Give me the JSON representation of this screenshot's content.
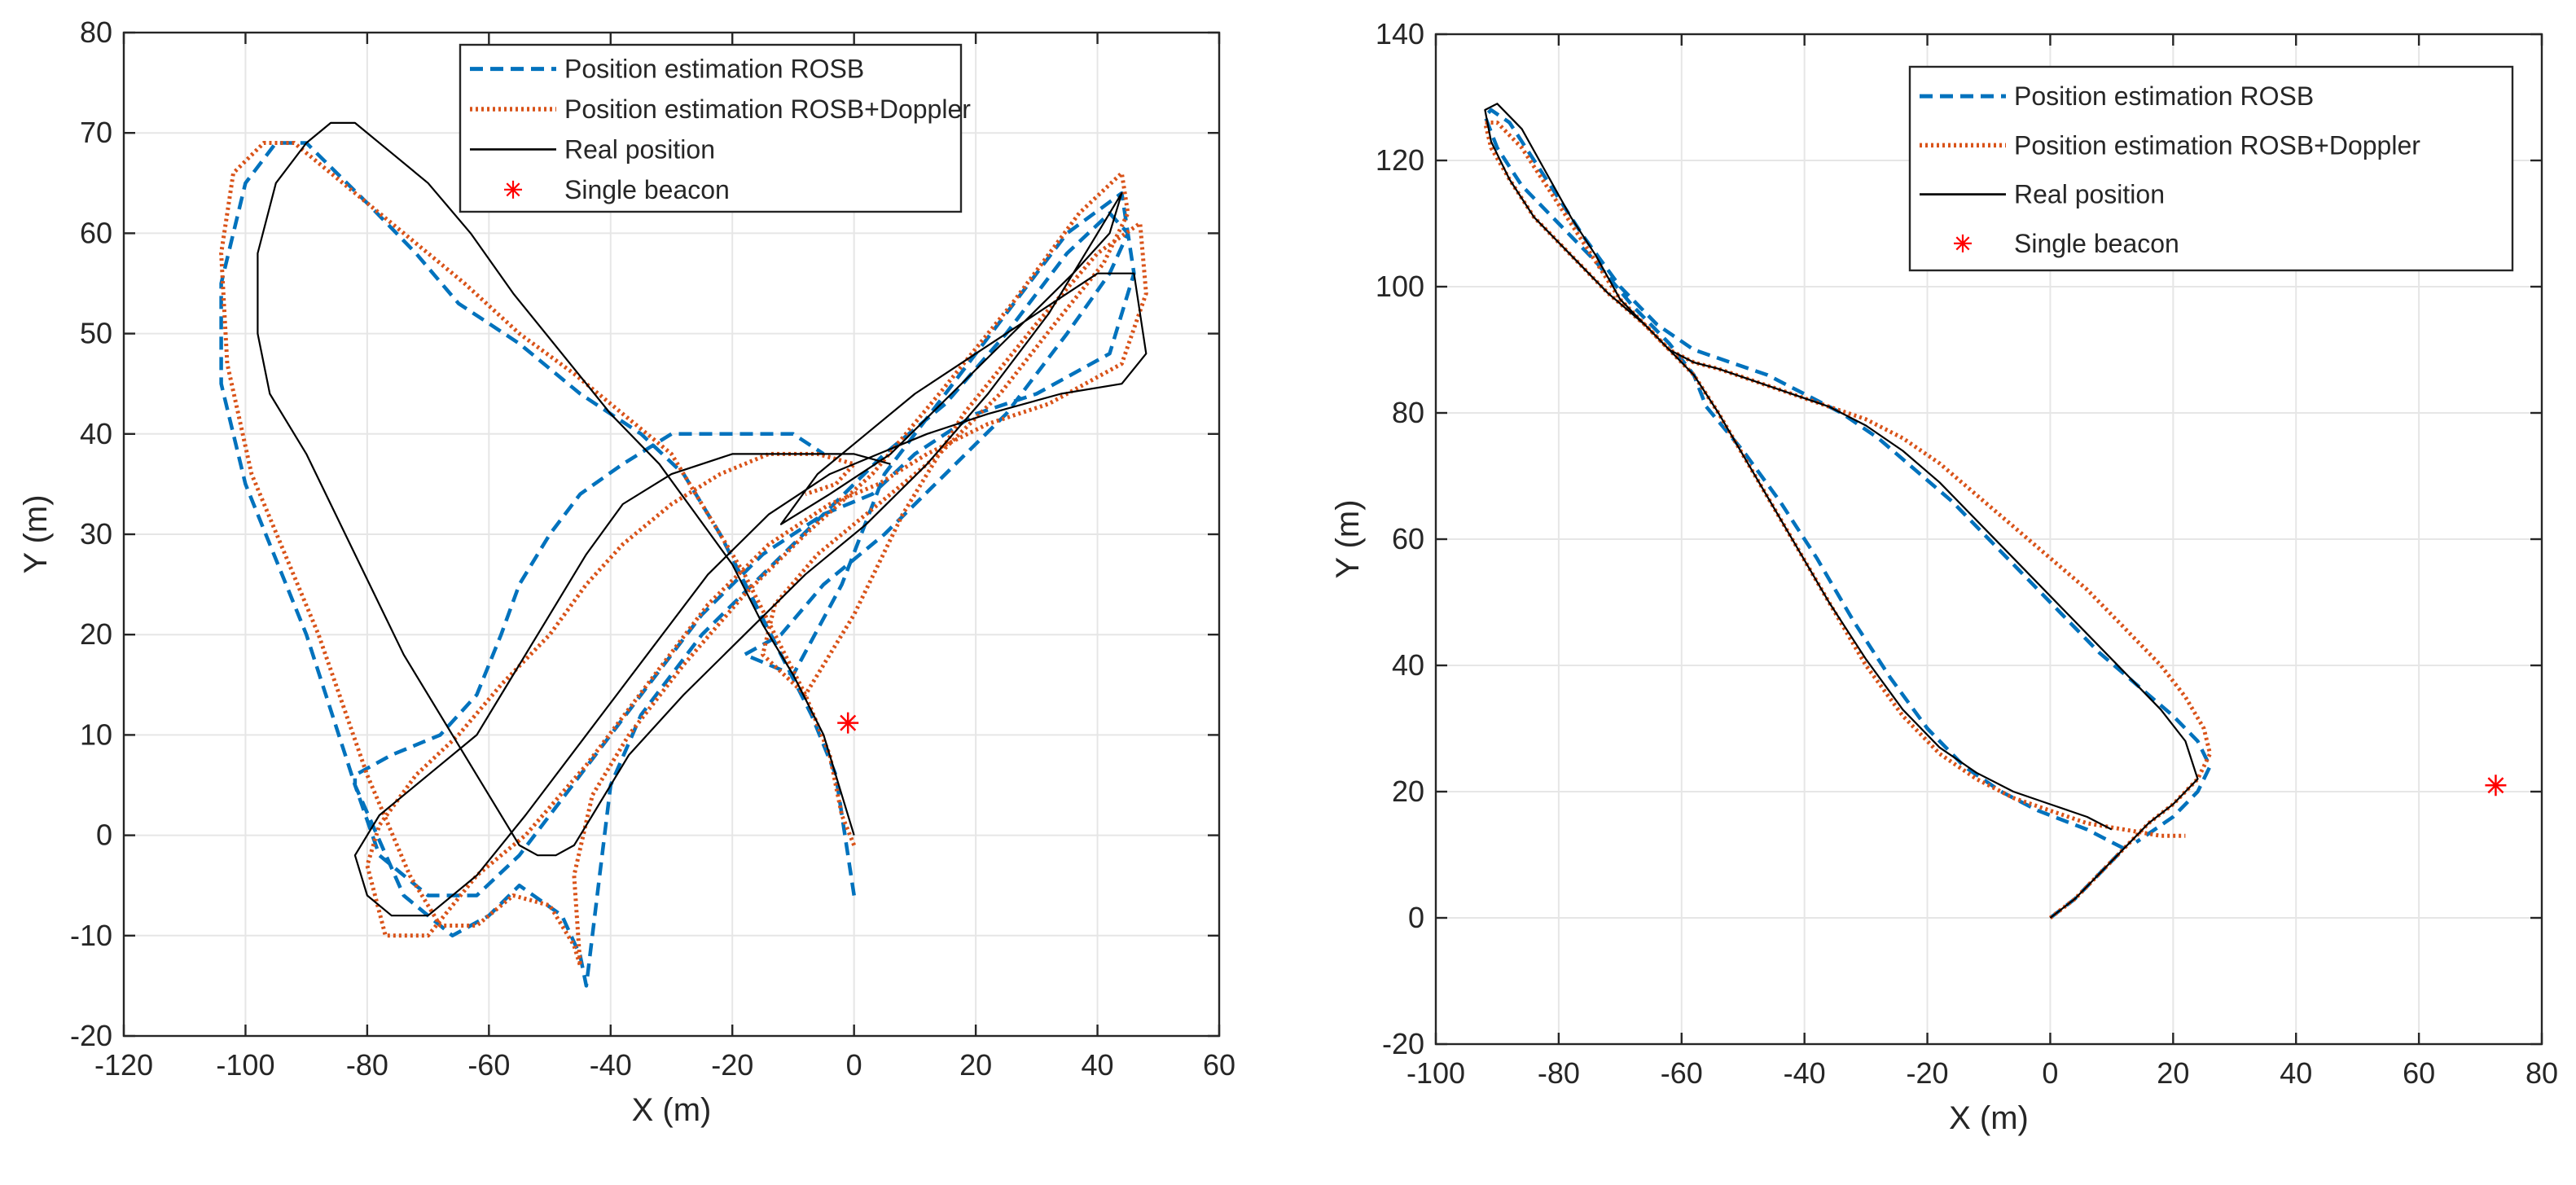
{
  "colors": {
    "rosb": "#0072bd",
    "doppler": "#d95319",
    "real": "#000000",
    "beacon": "#ff0000",
    "grid": "#e6e6e6",
    "axis": "#262626"
  },
  "chart_data": [
    {
      "type": "line",
      "xlabel": "X (m)",
      "ylabel": "Y (m)",
      "xlim": [
        -120,
        60
      ],
      "ylim": [
        -20,
        80
      ],
      "xticks": [
        "-120",
        "-100",
        "-80",
        "-60",
        "-40",
        "-20",
        "0",
        "20",
        "40",
        "60"
      ],
      "yticks": [
        "-20",
        "-10",
        "0",
        "10",
        "20",
        "30",
        "40",
        "50",
        "60",
        "70",
        "80"
      ],
      "grid": true,
      "legend_position": "top-center",
      "legend": [
        "Position estimation ROSB",
        "Position estimation ROSB+Doppler",
        "Real position",
        "Single beacon"
      ],
      "series": [
        {
          "name": "Position estimation ROSB",
          "style": "dashed",
          "color": "#0072bd",
          "x": [
            0,
            -1,
            -3,
            -7,
            -12,
            -17,
            -22,
            -28,
            -35,
            -45,
            -55,
            -65,
            -72,
            -80,
            -85,
            -90,
            -95,
            -100,
            -104,
            -104,
            -100,
            -90,
            -82,
            -74,
            -66,
            -60,
            -55,
            -48,
            -45,
            -44,
            -42,
            -40,
            -35,
            -25,
            -15,
            -5,
            5,
            15,
            25,
            35,
            42,
            45,
            42,
            35,
            25,
            15,
            5,
            -5,
            -12,
            -18,
            -10,
            -2,
            5,
            15,
            25,
            35,
            44,
            46,
            42,
            30,
            20,
            10,
            3,
            -5,
            -15,
            -25,
            -35,
            -45,
            -55,
            -62,
            -70,
            -78,
            -82,
            -82,
            -76,
            -68,
            -62,
            -58,
            -55,
            -50,
            -45,
            -38,
            -30,
            -20,
            -10,
            -5
          ],
          "y": [
            -6,
            -2,
            6,
            12,
            18,
            24,
            30,
            36,
            40,
            44,
            49,
            53,
            58,
            63,
            66,
            69,
            69,
            65,
            55,
            45,
            35,
            20,
            5,
            -6,
            -10,
            -8,
            -5,
            -8,
            -12,
            -15,
            -5,
            5,
            12,
            20,
            26,
            32,
            38,
            43,
            50,
            58,
            62,
            60,
            56,
            50,
            42,
            36,
            30,
            25,
            20,
            18,
            16,
            25,
            36,
            44,
            52,
            60,
            64,
            56,
            48,
            44,
            42,
            38,
            34,
            32,
            28,
            22,
            14,
            6,
            -2,
            -6,
            -6,
            -2,
            5,
            6,
            8,
            10,
            14,
            20,
            25,
            30,
            34,
            37,
            40,
            40,
            40,
            38
          ]
        },
        {
          "name": "Position estimation ROSB+Doppler",
          "style": "dotted",
          "color": "#d95319",
          "x": [
            0,
            -2,
            -4,
            -8,
            -13,
            -18,
            -24,
            -30,
            -38,
            -46,
            -55,
            -64,
            -72,
            -80,
            -86,
            -92,
            -97,
            -102,
            -104,
            -103,
            -99,
            -88,
            -80,
            -73,
            -68,
            -62,
            -56,
            -50,
            -46,
            -45,
            -46,
            -43,
            -37,
            -28,
            -18,
            -8,
            3,
            14,
            26,
            37,
            44,
            45,
            41,
            33,
            24,
            14,
            4,
            -6,
            -13,
            -15,
            -8,
            0,
            8,
            18,
            30,
            40,
            47,
            48,
            44,
            32,
            22,
            12,
            4,
            -4,
            -14,
            -24,
            -34,
            -44,
            -54,
            -62,
            -70,
            -77,
            -80,
            -78,
            -72,
            -65,
            -58,
            -50,
            -44,
            -38,
            -30,
            -22,
            -14,
            -6,
            0,
            -3,
            -8
          ],
          "y": [
            -1,
            2,
            8,
            14,
            20,
            26,
            32,
            38,
            42,
            46,
            50,
            55,
            59,
            63,
            66,
            69,
            69,
            66,
            58,
            47,
            36,
            20,
            6,
            -4,
            -9,
            -9,
            -6,
            -7,
            -11,
            -13,
            -4,
            4,
            10,
            17,
            24,
            30,
            36,
            44,
            53,
            62,
            66,
            62,
            57,
            51,
            44,
            38,
            33,
            28,
            23,
            18,
            14,
            22,
            32,
            42,
            51,
            58,
            61,
            54,
            47,
            43,
            41,
            38,
            35,
            33,
            29,
            23,
            15,
            7,
            0,
            -4,
            -10,
            -10,
            -3,
            1,
            6,
            10,
            15,
            20,
            25,
            29,
            33,
            36,
            38,
            38,
            37,
            35,
            34
          ]
        },
        {
          "name": "Real position",
          "style": "solid",
          "color": "#000000",
          "x": [
            0,
            -2,
            -5,
            -10,
            -15,
            -20,
            -26,
            -32,
            -40,
            -48,
            -56,
            -63,
            -70,
            -76,
            -82,
            -86,
            -90,
            -95,
            -98,
            -98,
            -96,
            -90,
            -82,
            -74,
            -66,
            -60,
            -55,
            -52,
            -49,
            -46,
            -43,
            -37,
            -28,
            -18,
            -8,
            2,
            12,
            22,
            32,
            40,
            44,
            42,
            36,
            26,
            16,
            6,
            -4,
            -12,
            -6,
            2,
            10,
            20,
            30,
            40,
            46,
            48,
            44,
            34,
            22,
            12,
            4,
            -4,
            -14,
            -24,
            -34,
            -44,
            -54,
            -62,
            -70,
            -76,
            -80,
            -82,
            -78,
            -70,
            -62,
            -56,
            -50,
            -44,
            -38,
            -30,
            -20,
            -10,
            0,
            6
          ],
          "y": [
            0,
            4,
            10,
            16,
            21,
            27,
            32,
            37,
            42,
            48,
            54,
            60,
            65,
            68,
            71,
            71,
            69,
            65,
            58,
            50,
            44,
            38,
            28,
            18,
            10,
            4,
            -1,
            -2,
            -2,
            -1,
            2,
            8,
            14,
            20,
            26,
            31,
            37,
            44,
            52,
            60,
            64,
            60,
            56,
            50,
            44,
            38,
            34,
            31,
            36,
            40,
            44,
            48,
            52,
            56,
            56,
            48,
            45,
            44,
            42,
            40,
            38,
            36,
            32,
            26,
            18,
            10,
            2,
            -4,
            -8,
            -8,
            -6,
            -2,
            2,
            6,
            10,
            16,
            22,
            28,
            33,
            36,
            38,
            38,
            38,
            37
          ]
        }
      ],
      "beacon": {
        "name": "Single beacon",
        "x": -1,
        "y": 11.2
      }
    },
    {
      "type": "line",
      "xlabel": "X (m)",
      "ylabel": "Y (m)",
      "xlim": [
        -100,
        80
      ],
      "ylim": [
        -20,
        140
      ],
      "xticks": [
        "-100",
        "-80",
        "-60",
        "-40",
        "-20",
        "0",
        "20",
        "40",
        "60",
        "80"
      ],
      "yticks": [
        "-20",
        "0",
        "20",
        "40",
        "60",
        "80",
        "100",
        "120",
        "140"
      ],
      "grid": true,
      "legend_position": "top-right",
      "legend": [
        "Position estimation ROSB",
        "Position estimation ROSB+Doppler",
        "Real position",
        "Single beacon"
      ],
      "series": [
        {
          "name": "Position estimation ROSB",
          "style": "dashed",
          "color": "#0072bd",
          "x": [
            0,
            4,
            8,
            12,
            6,
            -2,
            -8,
            -14,
            -20,
            -26,
            -32,
            -38,
            -44,
            -50,
            -56,
            -58,
            -62,
            -68,
            -74,
            -80,
            -86,
            -90,
            -92,
            -91,
            -88,
            -84,
            -80,
            -76,
            -70,
            -64,
            -58,
            -52,
            -46,
            -40,
            -34,
            -28,
            -22,
            -16,
            -10,
            -4,
            2,
            8,
            14,
            20,
            24,
            26,
            24,
            20,
            14
          ],
          "y": [
            0,
            3,
            7,
            11,
            14,
            17,
            20,
            24,
            30,
            38,
            47,
            57,
            66,
            74,
            81,
            86,
            91,
            97,
            104,
            110,
            116,
            122,
            127,
            128,
            126,
            120,
            114,
            108,
            100,
            94,
            90,
            88,
            86,
            83,
            80,
            76,
            71,
            66,
            60,
            54,
            48,
            42,
            37,
            32,
            28,
            24,
            20,
            16,
            12
          ]
        },
        {
          "name": "Position estimation ROSB+Doppler",
          "style": "dotted",
          "color": "#d95319",
          "x": [
            0,
            4,
            8,
            12,
            16,
            20,
            24,
            26,
            25,
            22,
            18,
            12,
            6,
            0,
            -6,
            -12,
            -18,
            -24,
            -30,
            -36,
            -42,
            -48,
            -54,
            -58,
            -62,
            -66,
            -72,
            -78,
            -84,
            -88,
            -91,
            -92,
            -90,
            -86,
            -82,
            -78,
            -74,
            -70,
            -66,
            -62,
            -58,
            -54,
            -48,
            -42,
            -36,
            -30,
            -24,
            -18,
            -12,
            -6,
            0,
            6,
            12,
            18,
            22
          ],
          "y": [
            0,
            3,
            7,
            11,
            15,
            18,
            22,
            26,
            30,
            35,
            40,
            46,
            52,
            57,
            62,
            67,
            72,
            76,
            79,
            81,
            83,
            85,
            87,
            88,
            90,
            94,
            99,
            105,
            111,
            117,
            122,
            126,
            126,
            122,
            116,
            110,
            104,
            98,
            94,
            90,
            86,
            80,
            70,
            60,
            50,
            40,
            32,
            26,
            22,
            19,
            17,
            15,
            14,
            13,
            13
          ]
        },
        {
          "name": "Real position",
          "style": "solid",
          "color": "#000000",
          "x": [
            0,
            4,
            8,
            12,
            16,
            20,
            24,
            22,
            18,
            12,
            6,
            0,
            -6,
            -12,
            -18,
            -24,
            -30,
            -36,
            -42,
            -48,
            -54,
            -58,
            -62,
            -66,
            -72,
            -78,
            -84,
            -88,
            -91,
            -92,
            -90,
            -86,
            -82,
            -78,
            -74,
            -70,
            -66,
            -62,
            -58,
            -54,
            -48,
            -42,
            -36,
            -30,
            -24,
            -18,
            -12,
            -6,
            0,
            6,
            10
          ],
          "y": [
            0,
            3,
            7,
            11,
            15,
            18,
            22,
            28,
            33,
            39,
            45,
            51,
            57,
            63,
            69,
            74,
            78,
            81,
            83,
            85,
            87,
            88,
            90,
            94,
            99,
            105,
            111,
            117,
            123,
            128,
            129,
            125,
            118,
            111,
            105,
            98,
            94,
            90,
            86,
            80,
            70,
            60,
            50,
            41,
            33,
            27,
            23,
            20,
            18,
            16,
            14
          ]
        }
      ],
      "beacon": {
        "name": "Single beacon",
        "x": 72.5,
        "y": 21
      }
    }
  ]
}
